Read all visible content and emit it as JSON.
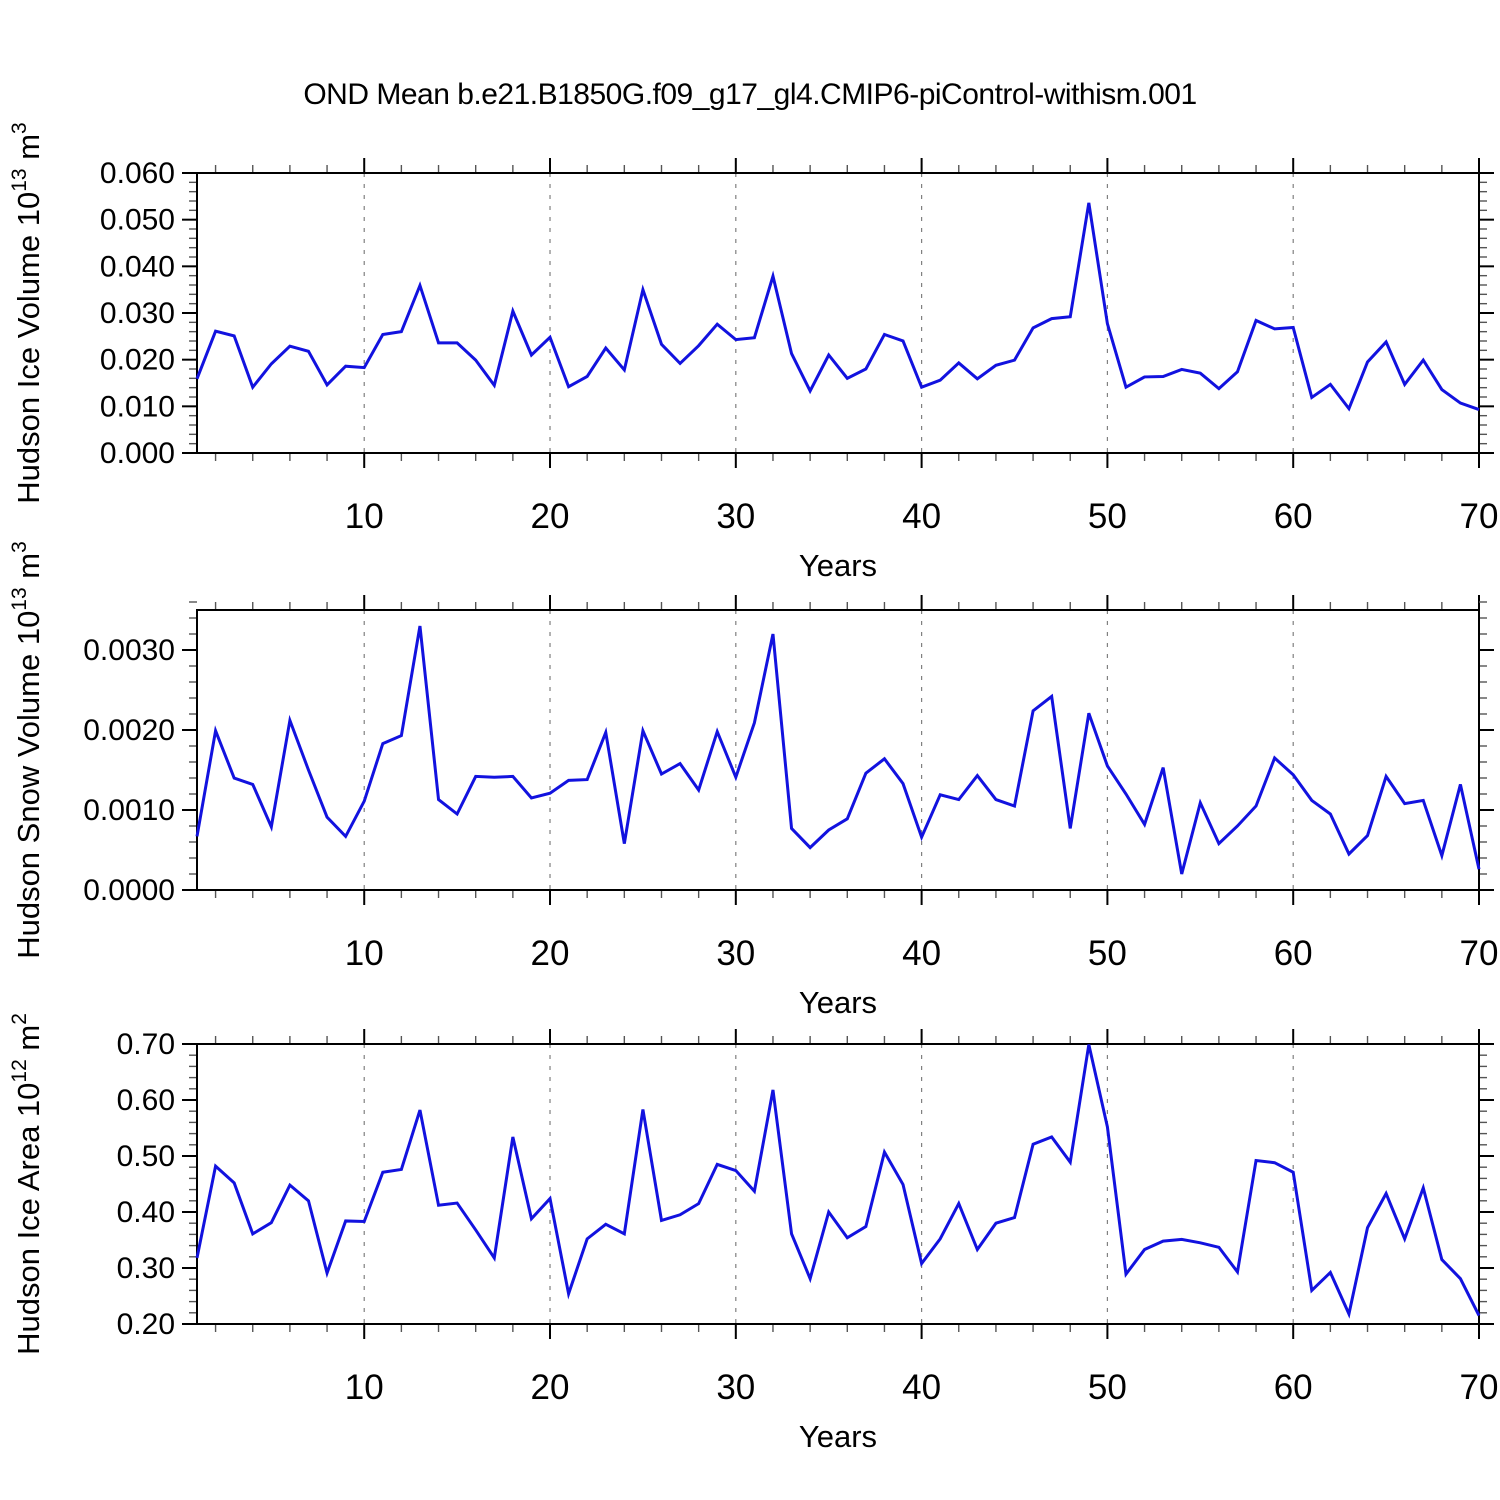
{
  "title": "OND Mean b.e21.B1850G.f09_g17_gl4.CMIP6-piControl-withism.001",
  "colors": {
    "line": "#1212DF",
    "axis": "#000000",
    "grid": "#808080",
    "text": "#000000",
    "background": "#FFFFFF"
  },
  "years": [
    1,
    2,
    3,
    4,
    5,
    6,
    7,
    8,
    9,
    10,
    11,
    12,
    13,
    14,
    15,
    16,
    17,
    18,
    19,
    20,
    21,
    22,
    23,
    24,
    25,
    26,
    27,
    28,
    29,
    30,
    31,
    32,
    33,
    34,
    35,
    36,
    37,
    38,
    39,
    40,
    41,
    42,
    43,
    44,
    45,
    46,
    47,
    48,
    49,
    50,
    51,
    52,
    53,
    54,
    55,
    56,
    57,
    58,
    59,
    60,
    61,
    62,
    63,
    64,
    65,
    66,
    67,
    68,
    69,
    70
  ],
  "chart_data": [
    {
      "type": "line",
      "name": "hudson-ice-volume",
      "ylabel_plain": "Hudson Ice Volume 10^13 m^3",
      "ylabel_segments": [
        {
          "t": "Hudson Ice Volume 10"
        },
        {
          "t": "13",
          "sup": 1
        },
        {
          "t": " m"
        },
        {
          "t": "3",
          "sup": 1
        }
      ],
      "xlabel": "Years",
      "ylim": [
        0.0,
        0.06
      ],
      "xlim": [
        1,
        70
      ],
      "yticks": [
        {
          "v": 0.0,
          "label": "0.000"
        },
        {
          "v": 0.01,
          "label": "0.010"
        },
        {
          "v": 0.02,
          "label": "0.020"
        },
        {
          "v": 0.03,
          "label": "0.030"
        },
        {
          "v": 0.04,
          "label": "0.040"
        },
        {
          "v": 0.05,
          "label": "0.050"
        },
        {
          "v": 0.06,
          "label": "0.060"
        }
      ],
      "yminor_step": 0.002,
      "xticks": [
        {
          "v": 10,
          "label": "10"
        },
        {
          "v": 20,
          "label": "20"
        },
        {
          "v": 30,
          "label": "30"
        },
        {
          "v": 40,
          "label": "40"
        },
        {
          "v": 50,
          "label": "50"
        },
        {
          "v": 60,
          "label": "60"
        },
        {
          "v": 70,
          "label": "70"
        }
      ],
      "xminor_step": 2,
      "grid_x": [
        10,
        20,
        30,
        40,
        50,
        60
      ],
      "values": [
        0.0159,
        0.0261,
        0.0251,
        0.0141,
        0.0191,
        0.0229,
        0.0218,
        0.0146,
        0.0186,
        0.0183,
        0.0254,
        0.026,
        0.0359,
        0.0236,
        0.0236,
        0.0199,
        0.0145,
        0.0304,
        0.021,
        0.0248,
        0.0142,
        0.0164,
        0.0225,
        0.0178,
        0.035,
        0.0233,
        0.0192,
        0.023,
        0.0276,
        0.0243,
        0.0247,
        0.0379,
        0.0213,
        0.0133,
        0.021,
        0.016,
        0.018,
        0.0254,
        0.024,
        0.0141,
        0.0156,
        0.0193,
        0.0159,
        0.0188,
        0.0199,
        0.0268,
        0.0288,
        0.0292,
        0.0536,
        0.0277,
        0.0141,
        0.0163,
        0.0164,
        0.0179,
        0.0171,
        0.0138,
        0.0174,
        0.0284,
        0.0266,
        0.0269,
        0.0119,
        0.0147,
        0.0095,
        0.0195,
        0.0238,
        0.0147,
        0.0199,
        0.0136,
        0.0107,
        0.0093
      ]
    },
    {
      "type": "line",
      "name": "hudson-snow-volume",
      "ylabel_plain": "Hudson Snow Volume 10^13 m^3",
      "ylabel_segments": [
        {
          "t": "Hudson Snow Volume 10"
        },
        {
          "t": "13",
          "sup": 1
        },
        {
          "t": " m"
        },
        {
          "t": "3",
          "sup": 1
        }
      ],
      "xlabel": "Years",
      "ylim": [
        0.0,
        0.0035
      ],
      "xlim": [
        1,
        70
      ],
      "yticks": [
        {
          "v": 0.0,
          "label": "0.0000"
        },
        {
          "v": 0.001,
          "label": "0.0010"
        },
        {
          "v": 0.002,
          "label": "0.0020"
        },
        {
          "v": 0.003,
          "label": "0.0030"
        }
      ],
      "yminor_step": 0.0002,
      "xticks": [
        {
          "v": 10,
          "label": "10"
        },
        {
          "v": 20,
          "label": "20"
        },
        {
          "v": 30,
          "label": "30"
        },
        {
          "v": 40,
          "label": "40"
        },
        {
          "v": 50,
          "label": "50"
        },
        {
          "v": 60,
          "label": "60"
        },
        {
          "v": 70,
          "label": "70"
        }
      ],
      "xminor_step": 2,
      "grid_x": [
        10,
        20,
        30,
        40,
        50,
        60
      ],
      "values": [
        0.00067,
        0.00199,
        0.0014,
        0.00132,
        0.00079,
        0.00212,
        0.0015,
        0.00091,
        0.00067,
        0.00111,
        0.00183,
        0.00193,
        0.0033,
        0.00113,
        0.00095,
        0.00142,
        0.00141,
        0.00142,
        0.00115,
        0.00121,
        0.00137,
        0.00138,
        0.00197,
        0.00058,
        0.00199,
        0.00145,
        0.00158,
        0.00125,
        0.00198,
        0.00141,
        0.00209,
        0.0032,
        0.00077,
        0.00053,
        0.00075,
        0.00089,
        0.00146,
        0.00164,
        0.00133,
        0.00066,
        0.00119,
        0.00113,
        0.00143,
        0.00113,
        0.00105,
        0.00224,
        0.00242,
        0.00077,
        0.00221,
        0.00155,
        0.0012,
        0.00082,
        0.00153,
        0.0002,
        0.00109,
        0.00058,
        0.0008,
        0.00105,
        0.00165,
        0.00144,
        0.00112,
        0.00095,
        0.00045,
        0.00068,
        0.00142,
        0.00108,
        0.00112,
        0.00043,
        0.00132,
        0.00026
      ]
    },
    {
      "type": "line",
      "name": "hudson-ice-area",
      "ylabel_plain": "Hudson Ice Area 10^12 m^2",
      "ylabel_segments": [
        {
          "t": "Hudson Ice Area 10"
        },
        {
          "t": "12",
          "sup": 1
        },
        {
          "t": " m"
        },
        {
          "t": "2",
          "sup": 1
        }
      ],
      "xlabel": "Years",
      "ylim": [
        0.2,
        0.7
      ],
      "xlim": [
        1,
        70
      ],
      "yticks": [
        {
          "v": 0.2,
          "label": "0.20"
        },
        {
          "v": 0.3,
          "label": "0.30"
        },
        {
          "v": 0.4,
          "label": "0.40"
        },
        {
          "v": 0.5,
          "label": "0.50"
        },
        {
          "v": 0.6,
          "label": "0.60"
        },
        {
          "v": 0.7,
          "label": "0.70"
        }
      ],
      "yminor_step": 0.02,
      "xticks": [
        {
          "v": 10,
          "label": "10"
        },
        {
          "v": 20,
          "label": "20"
        },
        {
          "v": 30,
          "label": "30"
        },
        {
          "v": 40,
          "label": "40"
        },
        {
          "v": 50,
          "label": "50"
        },
        {
          "v": 60,
          "label": "60"
        },
        {
          "v": 70,
          "label": "70"
        }
      ],
      "xminor_step": 2,
      "grid_x": [
        10,
        20,
        30,
        40,
        50,
        60
      ],
      "values": [
        0.318,
        0.482,
        0.452,
        0.361,
        0.381,
        0.448,
        0.42,
        0.291,
        0.384,
        0.383,
        0.471,
        0.476,
        0.582,
        0.412,
        0.416,
        0.368,
        0.318,
        0.534,
        0.388,
        0.424,
        0.254,
        0.352,
        0.378,
        0.361,
        0.583,
        0.385,
        0.395,
        0.415,
        0.485,
        0.474,
        0.437,
        0.618,
        0.361,
        0.281,
        0.4,
        0.354,
        0.374,
        0.507,
        0.449,
        0.308,
        0.352,
        0.415,
        0.333,
        0.38,
        0.39,
        0.521,
        0.534,
        0.489,
        0.699,
        0.552,
        0.289,
        0.333,
        0.348,
        0.351,
        0.345,
        0.337,
        0.293,
        0.492,
        0.488,
        0.471,
        0.26,
        0.292,
        0.218,
        0.372,
        0.433,
        0.352,
        0.443,
        0.315,
        0.281,
        0.215
      ]
    }
  ]
}
